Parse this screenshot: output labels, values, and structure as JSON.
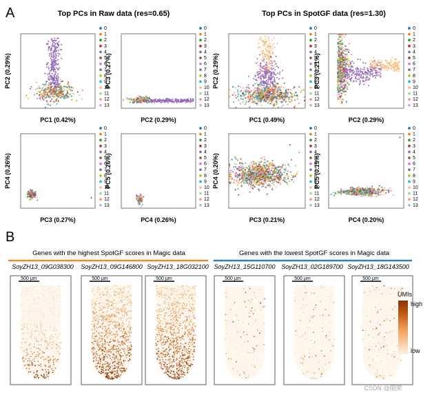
{
  "panel_a": {
    "letter": "A",
    "raw_title": "Top PCs in Raw data (res=0.65)",
    "spotgf_title": "Top PCs in SpotGF data (res=1.30)"
  },
  "panel_b": {
    "letter": "B",
    "highest_title": "Genes with the highest SpotGF scores in Magic data",
    "lowest_title": "Genes with the lowest SpotGF scores in Magic data",
    "genes": [
      {
        "name": "SoyZH13_09G038300",
        "group": "highest"
      },
      {
        "name": "SoyZH13_09G146800",
        "group": "highest"
      },
      {
        "name": "SoyZH13_18G032100",
        "group": "highest"
      },
      {
        "name": "SoyZH13_15G110700",
        "group": "lowest"
      },
      {
        "name": "SoyZH13_02G189700",
        "group": "lowest"
      },
      {
        "name": "SoyZH13_18G143500",
        "group": "lowest"
      }
    ],
    "scale_bar_label": "500 μm",
    "colorbar": {
      "title": "UMIs",
      "high": "high",
      "low": "low",
      "colors": [
        "#fdf1e4",
        "#f3a15a",
        "#c45a12",
        "#8a3305"
      ]
    },
    "highest_bar_color": "#ef8a2b",
    "lowest_bar_color": "#2b7fbd"
  },
  "watermark": "CSDN @朋荣",
  "chart_data": [
    {
      "type": "scatter",
      "id": "raw_pc1_pc2",
      "dataset": "Raw",
      "xlabel": "PC1 (0.42%)",
      "ylabel": "PC2 (0.29%)",
      "legend": [
        "0",
        "1",
        "2",
        "3",
        "4",
        "5",
        "6",
        "7",
        "8",
        "9",
        "10",
        "11",
        "12",
        "13"
      ],
      "legend_position": "right"
    },
    {
      "type": "scatter",
      "id": "raw_pc2_pc3",
      "dataset": "Raw",
      "xlabel": "PC2 (0.29%)",
      "ylabel": "PC3 (0.27%)",
      "legend": [
        "0",
        "1",
        "2",
        "3",
        "4",
        "5",
        "6",
        "7",
        "8",
        "9",
        "10",
        "11",
        "12",
        "13"
      ],
      "legend_position": "right"
    },
    {
      "type": "scatter",
      "id": "raw_pc3_pc4",
      "dataset": "Raw",
      "xlabel": "PC3 (0.27%)",
      "ylabel": "PC4 (0.26%)",
      "legend": [
        "0",
        "1",
        "2",
        "3",
        "4",
        "5",
        "6",
        "7",
        "8",
        "9",
        "10",
        "11",
        "12",
        "13"
      ],
      "legend_position": "right"
    },
    {
      "type": "scatter",
      "id": "raw_pc4_pc5",
      "dataset": "Raw",
      "xlabel": "PC4 (0.26%)",
      "ylabel": "PC5 (0.26%)",
      "legend": [
        "0",
        "1",
        "2",
        "3",
        "4",
        "5",
        "6",
        "7",
        "8",
        "9",
        "10",
        "11",
        "12",
        "13"
      ],
      "legend_position": "right"
    },
    {
      "type": "scatter",
      "id": "spotgf_pc1_pc2",
      "dataset": "SpotGF",
      "xlabel": "PC1 (0.49%)",
      "ylabel": "PC2 (0.29%)",
      "legend": [
        "0",
        "1",
        "2",
        "3",
        "4",
        "5",
        "6",
        "7",
        "8",
        "9",
        "10",
        "11",
        "12",
        "13"
      ],
      "legend_position": "right"
    },
    {
      "type": "scatter",
      "id": "spotgf_pc2_pc3",
      "dataset": "SpotGF",
      "xlabel": "PC2 (0.29%)",
      "ylabel": "PC3 (0.21%)",
      "legend": [
        "0",
        "1",
        "2",
        "3",
        "4",
        "5",
        "6",
        "7",
        "8",
        "9",
        "10",
        "11",
        "12",
        "13"
      ],
      "legend_position": "right"
    },
    {
      "type": "scatter",
      "id": "spotgf_pc3_pc4",
      "dataset": "SpotGF",
      "xlabel": "PC3 (0.21%)",
      "ylabel": "PC4 (0.20%)",
      "legend": [
        "0",
        "1",
        "2",
        "3",
        "4",
        "5",
        "6",
        "7",
        "8",
        "9",
        "10",
        "11",
        "12",
        "13"
      ],
      "legend_position": "right"
    },
    {
      "type": "scatter",
      "id": "spotgf_pc4_pc5",
      "dataset": "SpotGF",
      "xlabel": "PC4 (0.20%)",
      "ylabel": "PC5 (0.19%)",
      "legend": [
        "0",
        "1",
        "2",
        "3",
        "4",
        "5",
        "6",
        "7",
        "8",
        "9",
        "10",
        "11",
        "12",
        "13"
      ],
      "legend_position": "right"
    }
  ],
  "cluster_colors": [
    "#1f77b4",
    "#ff7f0e",
    "#2ca02c",
    "#d62728",
    "#9467bd",
    "#8c564b",
    "#e377c2",
    "#7f7f7f",
    "#bcbd22",
    "#17becf",
    "#ffbb78",
    "#98df8a",
    "#ff9896",
    "#c5b0d5"
  ]
}
